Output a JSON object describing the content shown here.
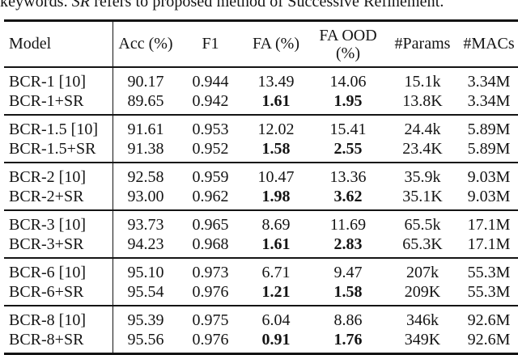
{
  "colors": {
    "background": "#ffffff",
    "text": "#141414",
    "rule": "#141414"
  },
  "caption": {
    "prefix": "keywords. ",
    "italic": "SR",
    "suffix": " refers to proposed method of Successive Refinement."
  },
  "table": {
    "headers": {
      "model": "Model",
      "acc": "Acc (%)",
      "f1": "F1",
      "fa": "FA (%)",
      "fa_ood_line1": "FA OOD",
      "fa_ood_line2": "(%)",
      "params": "#Params",
      "macs": "#MACs"
    },
    "groups": [
      {
        "rows": [
          {
            "model": "BCR-1 [10]",
            "acc": "90.17",
            "f1": "0.944",
            "fa": "13.49",
            "fa_ood": "14.06",
            "params": "15.1k",
            "macs": "3.34M",
            "emphasized": false
          },
          {
            "model": "BCR-1+SR",
            "acc": "89.65",
            "f1": "0.942",
            "fa": "1.61",
            "fa_ood": "1.95",
            "params": "13.8K",
            "macs": "3.34M",
            "emphasized": true
          }
        ]
      },
      {
        "rows": [
          {
            "model": "BCR-1.5 [10]",
            "acc": "91.61",
            "f1": "0.953",
            "fa": "12.02",
            "fa_ood": "15.41",
            "params": "24.4k",
            "macs": "5.89M",
            "emphasized": false
          },
          {
            "model": "BCR-1.5+SR",
            "acc": "91.38",
            "f1": "0.952",
            "fa": "1.58",
            "fa_ood": "2.55",
            "params": "23.4K",
            "macs": "5.89M",
            "emphasized": true
          }
        ]
      },
      {
        "rows": [
          {
            "model": "BCR-2 [10]",
            "acc": "92.58",
            "f1": "0.959",
            "fa": "10.47",
            "fa_ood": "13.36",
            "params": "35.9k",
            "macs": "9.03M",
            "emphasized": false
          },
          {
            "model": "BCR-2+SR",
            "acc": "93.00",
            "f1": "0.962",
            "fa": "1.98",
            "fa_ood": "3.62",
            "params": "35.1K",
            "macs": "9.03M",
            "emphasized": true
          }
        ]
      },
      {
        "rows": [
          {
            "model": "BCR-3 [10]",
            "acc": "93.73",
            "f1": "0.965",
            "fa": "8.69",
            "fa_ood": "11.69",
            "params": "65.5k",
            "macs": "17.1M",
            "emphasized": false
          },
          {
            "model": "BCR-3+SR",
            "acc": "94.23",
            "f1": "0.968",
            "fa": "1.61",
            "fa_ood": "2.83",
            "params": "65.3K",
            "macs": "17.1M",
            "emphasized": true
          }
        ]
      },
      {
        "rows": [
          {
            "model": "BCR-6 [10]",
            "acc": "95.10",
            "f1": "0.973",
            "fa": "6.71",
            "fa_ood": "9.47",
            "params": "207k",
            "macs": "55.3M",
            "emphasized": false
          },
          {
            "model": "BCR-6+SR",
            "acc": "95.54",
            "f1": "0.976",
            "fa": "1.21",
            "fa_ood": "1.58",
            "params": "209K",
            "macs": "55.3M",
            "emphasized": true
          }
        ]
      },
      {
        "rows": [
          {
            "model": "BCR-8 [10]",
            "acc": "95.39",
            "f1": "0.975",
            "fa": "6.04",
            "fa_ood": "8.86",
            "params": "346k",
            "macs": "92.6M",
            "emphasized": false
          },
          {
            "model": "BCR-8+SR",
            "acc": "95.56",
            "f1": "0.976",
            "fa": "0.91",
            "fa_ood": "1.76",
            "params": "349K",
            "macs": "92.6M",
            "emphasized": true
          }
        ]
      }
    ]
  }
}
